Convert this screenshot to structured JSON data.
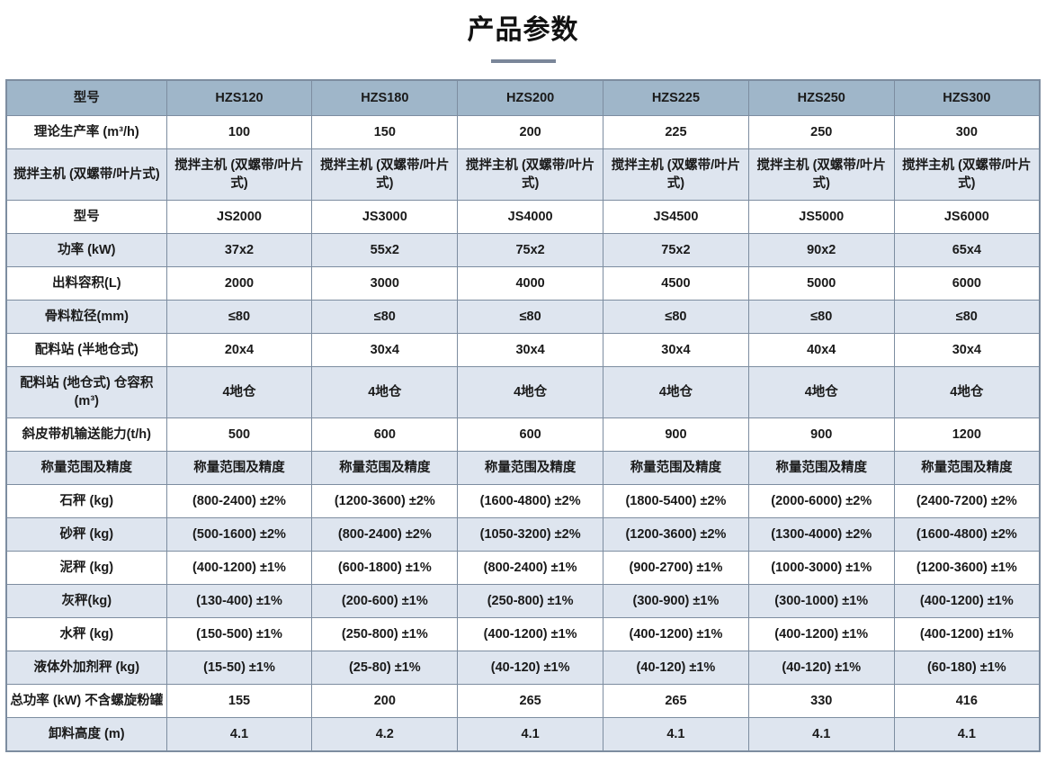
{
  "page": {
    "title": "产品参数"
  },
  "table": {
    "header": [
      "型号",
      "HZS120",
      "HZS180",
      "HZS200",
      "HZS225",
      "HZS250",
      "HZS300"
    ],
    "rows": [
      {
        "label": "理论生产率 (m³/h)",
        "values": [
          "100",
          "150",
          "200",
          "225",
          "250",
          "300"
        ]
      },
      {
        "label": "搅拌主机 (双螺带/叶片式)",
        "values": [
          "搅拌主机 (双螺带/叶片式)",
          "搅拌主机 (双螺带/叶片式)",
          "搅拌主机 (双螺带/叶片式)",
          "搅拌主机 (双螺带/叶片式)",
          "搅拌主机 (双螺带/叶片式)",
          "搅拌主机 (双螺带/叶片式)"
        ]
      },
      {
        "label": "型号",
        "values": [
          "JS2000",
          "JS3000",
          "JS4000",
          "JS4500",
          "JS5000",
          "JS6000"
        ]
      },
      {
        "label": "功率 (kW)",
        "values": [
          "37x2",
          "55x2",
          "75x2",
          "75x2",
          "90x2",
          "65x4"
        ]
      },
      {
        "label": "出料容积(L)",
        "values": [
          "2000",
          "3000",
          "4000",
          "4500",
          "5000",
          "6000"
        ]
      },
      {
        "label": "骨料粒径(mm)",
        "values": [
          "≤80",
          "≤80",
          "≤80",
          "≤80",
          "≤80",
          "≤80"
        ]
      },
      {
        "label": "配料站 (半地仓式)",
        "values": [
          "20x4",
          "30x4",
          "30x4",
          "30x4",
          "40x4",
          "30x4"
        ]
      },
      {
        "label": "配料站 (地仓式) 仓容积 (m³)",
        "values": [
          "4地仓",
          "4地仓",
          "4地仓",
          "4地仓",
          "4地仓",
          "4地仓"
        ]
      },
      {
        "label": "斜皮带机输送能力(t/h)",
        "values": [
          "500",
          "600",
          "600",
          "900",
          "900",
          "1200"
        ]
      },
      {
        "label": "称量范围及精度",
        "values": [
          "称量范围及精度",
          "称量范围及精度",
          "称量范围及精度",
          "称量范围及精度",
          "称量范围及精度",
          "称量范围及精度"
        ]
      },
      {
        "label": "石秤 (kg)",
        "values": [
          "(800-2400) ±2%",
          "(1200-3600) ±2%",
          "(1600-4800) ±2%",
          "(1800-5400) ±2%",
          "(2000-6000) ±2%",
          "(2400-7200) ±2%"
        ]
      },
      {
        "label": "砂秤 (kg)",
        "values": [
          "(500-1600) ±2%",
          "(800-2400) ±2%",
          "(1050-3200) ±2%",
          "(1200-3600) ±2%",
          "(1300-4000) ±2%",
          "(1600-4800) ±2%"
        ]
      },
      {
        "label": "泥秤 (kg)",
        "values": [
          "(400-1200) ±1%",
          "(600-1800) ±1%",
          "(800-2400) ±1%",
          "(900-2700) ±1%",
          "(1000-3000) ±1%",
          "(1200-3600) ±1%"
        ]
      },
      {
        "label": "灰秤(kg)",
        "values": [
          "(130-400) ±1%",
          "(200-600) ±1%",
          "(250-800) ±1%",
          "(300-900) ±1%",
          "(300-1000) ±1%",
          "(400-1200) ±1%"
        ]
      },
      {
        "label": "水秤 (kg)",
        "values": [
          "(150-500) ±1%",
          "(250-800) ±1%",
          "(400-1200) ±1%",
          "(400-1200) ±1%",
          "(400-1200) ±1%",
          "(400-1200) ±1%"
        ]
      },
      {
        "label": "液体外加剂秤 (kg)",
        "values": [
          "(15-50) ±1%",
          "(25-80) ±1%",
          "(40-120) ±1%",
          "(40-120) ±1%",
          "(40-120) ±1%",
          "(60-180) ±1%"
        ]
      },
      {
        "label": "总功率 (kW) 不含螺旋粉罐",
        "values": [
          "155",
          "200",
          "265",
          "265",
          "330",
          "416"
        ]
      },
      {
        "label": "卸料高度 (m)",
        "values": [
          "4.1",
          "4.2",
          "4.1",
          "4.1",
          "4.1",
          "4.1"
        ]
      }
    ]
  },
  "colors": {
    "header_bg": "#9fb6c9",
    "alt_row_bg": "#dee5ef",
    "border": "#7d8da0",
    "title_underline": "#7a8699"
  }
}
